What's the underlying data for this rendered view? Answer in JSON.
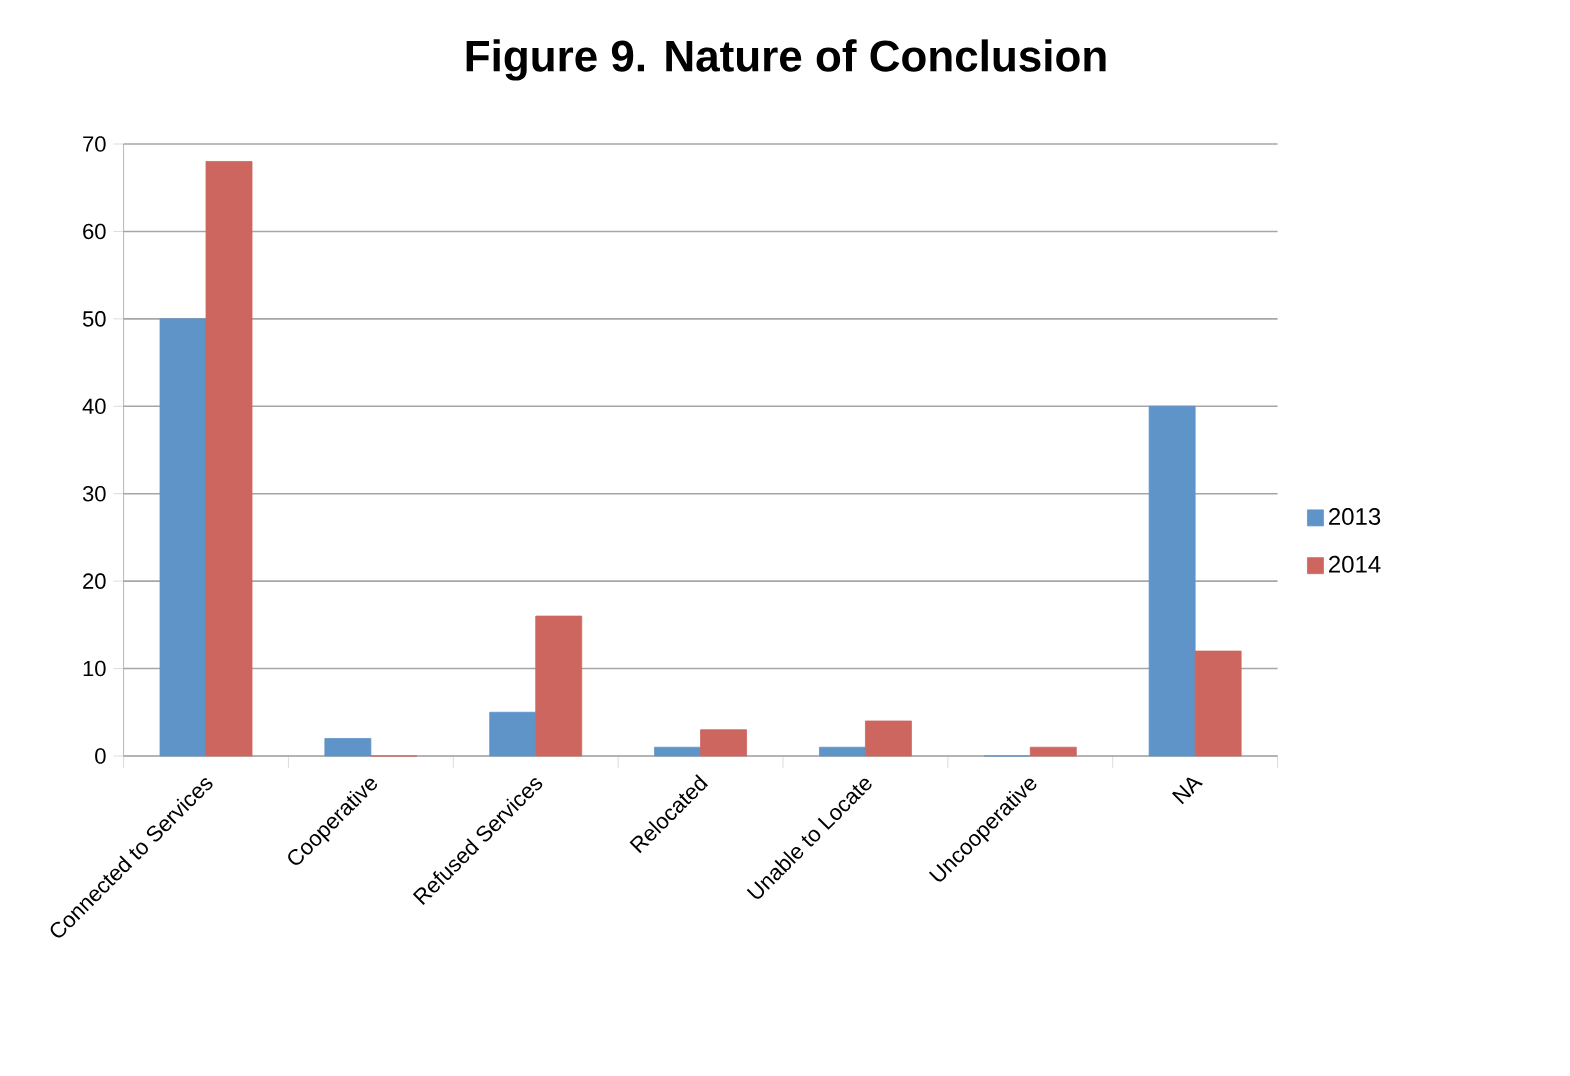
{
  "chart_data": {
    "type": "bar",
    "title": "Figure 9. Nature of Conclusion",
    "categories": [
      "Connected to Services",
      "Cooperative",
      "Refused Services",
      "Relocated",
      "Unable to Locate",
      "Uncooperative",
      "NA"
    ],
    "series": [
      {
        "name": "2013",
        "color": "#5f94c9",
        "values": [
          50,
          2,
          5,
          1,
          1,
          0,
          40
        ]
      },
      {
        "name": "2014",
        "color": "#cd665f",
        "values": [
          68,
          0,
          16,
          3,
          4,
          1,
          12
        ]
      }
    ],
    "ylim": [
      0,
      70
    ],
    "yticks": [
      0,
      10,
      20,
      30,
      40,
      50,
      60,
      70
    ],
    "grid": "y",
    "legend": "right"
  }
}
